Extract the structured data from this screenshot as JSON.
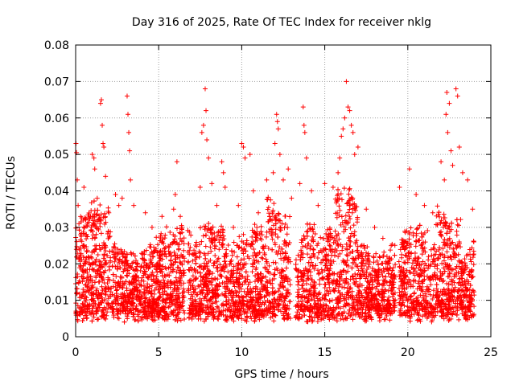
{
  "chart_data": {
    "type": "scatter",
    "title": "Day 316 of 2025, Rate Of TEC Index for receiver nklg",
    "xlabel": "GPS time / hours",
    "ylabel": "ROTI / TECUs",
    "xlim": [
      0,
      25
    ],
    "ylim": [
      0,
      0.08
    ],
    "xticks": [
      0,
      5,
      10,
      15,
      20,
      25
    ],
    "xtick_labels": [
      "0",
      "5",
      "10",
      "15",
      "20",
      "25"
    ],
    "yticks": [
      0,
      0.01,
      0.02,
      0.03,
      0.04,
      0.05,
      0.06,
      0.07,
      0.08
    ],
    "ytick_labels": [
      "0",
      "0.01",
      "0.02",
      "0.03",
      "0.04",
      "0.05",
      "0.06",
      "0.07",
      "0.08"
    ],
    "grid": true,
    "marker": "+",
    "color": "#ff0000",
    "series": [
      {
        "name": "ROTI",
        "points": [
          [
            0.02,
            0.053
          ],
          [
            0.05,
            0.0505
          ],
          [
            0.1,
            0.043
          ],
          [
            0.15,
            0.036
          ],
          [
            0.2,
            0.031
          ],
          [
            0.3,
            0.028
          ],
          [
            0.5,
            0.041
          ],
          [
            0.6,
            0.032
          ],
          [
            0.9,
            0.033
          ],
          [
            1.0,
            0.05
          ],
          [
            1.1,
            0.049
          ],
          [
            1.15,
            0.046
          ],
          [
            1.3,
            0.038
          ],
          [
            1.5,
            0.064
          ],
          [
            1.55,
            0.065
          ],
          [
            1.6,
            0.058
          ],
          [
            1.65,
            0.053
          ],
          [
            1.7,
            0.052
          ],
          [
            1.8,
            0.044
          ],
          [
            2.0,
            0.034
          ],
          [
            2.4,
            0.039
          ],
          [
            2.6,
            0.036
          ],
          [
            2.8,
            0.038
          ],
          [
            3.1,
            0.066
          ],
          [
            3.15,
            0.061
          ],
          [
            3.2,
            0.056
          ],
          [
            3.25,
            0.051
          ],
          [
            3.3,
            0.043
          ],
          [
            3.5,
            0.036
          ],
          [
            4.2,
            0.034
          ],
          [
            4.6,
            0.03
          ],
          [
            5.2,
            0.033
          ],
          [
            5.9,
            0.035
          ],
          [
            6.1,
            0.048
          ],
          [
            6.0,
            0.039
          ],
          [
            6.3,
            0.033
          ],
          [
            7.5,
            0.041
          ],
          [
            7.6,
            0.056
          ],
          [
            7.7,
            0.058
          ],
          [
            7.8,
            0.068
          ],
          [
            7.85,
            0.062
          ],
          [
            7.9,
            0.054
          ],
          [
            8.0,
            0.049
          ],
          [
            8.2,
            0.042
          ],
          [
            8.5,
            0.036
          ],
          [
            8.8,
            0.048
          ],
          [
            8.9,
            0.045
          ],
          [
            9.0,
            0.041
          ],
          [
            9.5,
            0.03
          ],
          [
            9.8,
            0.036
          ],
          [
            10.0,
            0.053
          ],
          [
            10.1,
            0.052
          ],
          [
            10.2,
            0.049
          ],
          [
            10.5,
            0.05
          ],
          [
            10.7,
            0.04
          ],
          [
            11.0,
            0.034
          ],
          [
            11.5,
            0.043
          ],
          [
            11.9,
            0.045
          ],
          [
            12.0,
            0.053
          ],
          [
            12.1,
            0.061
          ],
          [
            12.15,
            0.059
          ],
          [
            12.2,
            0.057
          ],
          [
            12.3,
            0.05
          ],
          [
            12.5,
            0.043
          ],
          [
            12.8,
            0.046
          ],
          [
            13.0,
            0.038
          ],
          [
            13.5,
            0.042
          ],
          [
            13.7,
            0.063
          ],
          [
            13.75,
            0.058
          ],
          [
            13.8,
            0.056
          ],
          [
            13.9,
            0.049
          ],
          [
            14.2,
            0.04
          ],
          [
            14.6,
            0.036
          ],
          [
            15.0,
            0.042
          ],
          [
            15.5,
            0.041
          ],
          [
            15.8,
            0.045
          ],
          [
            15.9,
            0.049
          ],
          [
            16.0,
            0.055
          ],
          [
            16.1,
            0.057
          ],
          [
            16.2,
            0.06
          ],
          [
            16.3,
            0.07
          ],
          [
            16.4,
            0.063
          ],
          [
            16.5,
            0.062
          ],
          [
            16.6,
            0.058
          ],
          [
            16.7,
            0.056
          ],
          [
            16.8,
            0.05
          ],
          [
            17.0,
            0.052
          ],
          [
            17.5,
            0.035
          ],
          [
            18.0,
            0.03
          ],
          [
            18.5,
            0.027
          ],
          [
            19.0,
            0.025
          ],
          [
            19.5,
            0.041
          ],
          [
            20.1,
            0.046
          ],
          [
            20.5,
            0.039
          ],
          [
            21.0,
            0.036
          ],
          [
            21.5,
            0.034
          ],
          [
            22.0,
            0.048
          ],
          [
            22.2,
            0.043
          ],
          [
            22.3,
            0.061
          ],
          [
            22.35,
            0.067
          ],
          [
            22.4,
            0.056
          ],
          [
            22.5,
            0.064
          ],
          [
            22.6,
            0.051
          ],
          [
            22.7,
            0.047
          ],
          [
            22.9,
            0.068
          ],
          [
            23.0,
            0.066
          ],
          [
            23.1,
            0.052
          ],
          [
            23.3,
            0.045
          ],
          [
            23.6,
            0.043
          ],
          [
            23.9,
            0.035
          ]
        ]
      }
    ]
  }
}
